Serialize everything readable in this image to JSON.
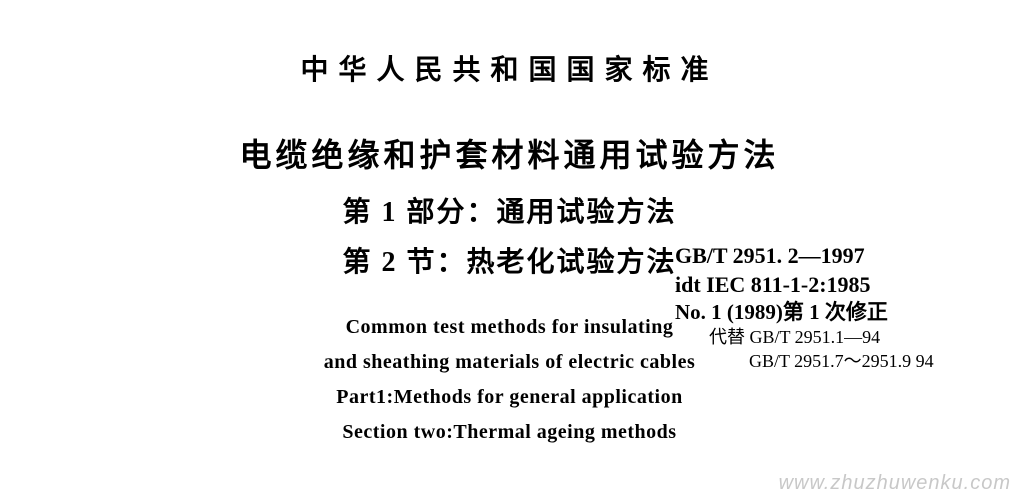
{
  "colors": {
    "background": "#ffffff",
    "text": "#000000",
    "watermark": "#c8c8c8"
  },
  "header": {
    "org": "中华人民共和国国家标准"
  },
  "title": {
    "cn_main": "电缆绝缘和护套材料通用试验方法",
    "cn_part": "第 1 部分：通用试验方法",
    "cn_section": "第 2 节：热老化试验方法"
  },
  "title_en": {
    "line1": "Common test methods for insulating",
    "line2": "and sheathing materials of electric cables",
    "line3": "Part1:Methods for general application",
    "line4": "Section two:Thermal ageing methods"
  },
  "reference": {
    "gb": "GB/T 2951. 2—1997",
    "iec": "idt IEC 811-1-2:1985",
    "amend": "No. 1 (1989)第 1 次修正",
    "supersede1": "代替 GB/T 2951.1—94",
    "supersede2": "GB/T 2951.7～2951.9  94"
  },
  "watermark": "www.zhuzhuwenku.com",
  "typography": {
    "header_fontsize": 28,
    "header_letterspacing": 10,
    "title_main_fontsize": 32,
    "title_sub_fontsize": 28,
    "en_fontsize": 20,
    "ref_fontsize_bold": 22,
    "ref_fontsize": 20,
    "ref_fontsize_small": 18,
    "watermark_fontsize": 20
  }
}
